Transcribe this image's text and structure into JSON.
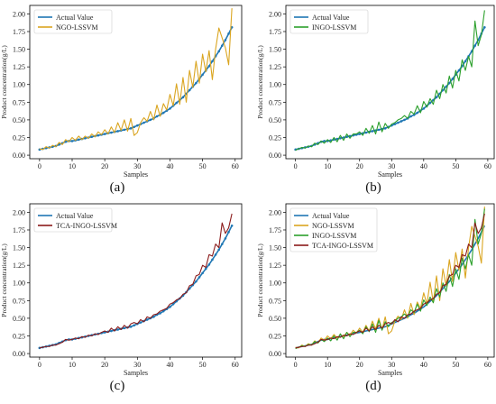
{
  "figure": {
    "panel_labels": [
      "(a)",
      "(b)",
      "(c)",
      "(d)"
    ]
  },
  "chart_data": [
    {
      "type": "line",
      "panel": "(a)",
      "xlabel": "Samples",
      "ylabel": "Product concentration(g/L)",
      "xlim": [
        -3,
        62
      ],
      "ylim": [
        -0.05,
        2.12
      ],
      "xticks": [
        0,
        10,
        20,
        30,
        40,
        50,
        60
      ],
      "yticks": [
        0.0,
        0.25,
        0.5,
        0.75,
        1.0,
        1.25,
        1.5,
        1.75,
        2.0
      ],
      "legend_position": "upper-left",
      "grid": false,
      "series": [
        {
          "name": "Actual Value",
          "color": "#1f77b4",
          "marker": "dot",
          "values": [
            0.08,
            0.09,
            0.1,
            0.11,
            0.12,
            0.13,
            0.15,
            0.17,
            0.19,
            0.2,
            0.2,
            0.21,
            0.22,
            0.23,
            0.24,
            0.25,
            0.26,
            0.27,
            0.28,
            0.29,
            0.3,
            0.31,
            0.32,
            0.33,
            0.34,
            0.35,
            0.36,
            0.37,
            0.38,
            0.4,
            0.42,
            0.44,
            0.46,
            0.48,
            0.5,
            0.52,
            0.55,
            0.57,
            0.6,
            0.63,
            0.66,
            0.7,
            0.74,
            0.78,
            0.82,
            0.87,
            0.92,
            0.97,
            1.02,
            1.08,
            1.14,
            1.2,
            1.26,
            1.33,
            1.4,
            1.47,
            1.55,
            1.63,
            1.72,
            1.81
          ]
        },
        {
          "name": "NGO-LSSVM",
          "color": "#daa520",
          "marker": "none",
          "values": [
            0.09,
            0.08,
            0.12,
            0.1,
            0.14,
            0.12,
            0.18,
            0.15,
            0.22,
            0.19,
            0.25,
            0.21,
            0.27,
            0.22,
            0.27,
            0.24,
            0.3,
            0.26,
            0.33,
            0.29,
            0.36,
            0.3,
            0.4,
            0.32,
            0.46,
            0.35,
            0.5,
            0.34,
            0.52,
            0.28,
            0.32,
            0.46,
            0.53,
            0.48,
            0.62,
            0.5,
            0.71,
            0.55,
            0.73,
            0.64,
            0.86,
            0.7,
            1.01,
            0.72,
            1.1,
            0.75,
            1.2,
            0.96,
            1.33,
            1.02,
            1.43,
            1.18,
            1.48,
            1.07,
            1.5,
            1.8,
            1.66,
            1.52,
            1.28,
            2.08
          ]
        }
      ]
    },
    {
      "type": "line",
      "panel": "(b)",
      "xlabel": "Samples",
      "ylabel": "Product concentration(g/L)",
      "xlim": [
        -3,
        62
      ],
      "ylim": [
        -0.05,
        2.12
      ],
      "xticks": [
        0,
        10,
        20,
        30,
        40,
        50,
        60
      ],
      "yticks": [
        0.0,
        0.25,
        0.5,
        0.75,
        1.0,
        1.25,
        1.5,
        1.75,
        2.0
      ],
      "legend_position": "upper-left",
      "grid": false,
      "series": [
        {
          "name": "Actual Value",
          "color": "#1f77b4",
          "marker": "dot",
          "values": [
            0.08,
            0.09,
            0.1,
            0.11,
            0.12,
            0.13,
            0.15,
            0.17,
            0.19,
            0.2,
            0.2,
            0.21,
            0.22,
            0.23,
            0.24,
            0.25,
            0.26,
            0.27,
            0.28,
            0.29,
            0.3,
            0.31,
            0.32,
            0.33,
            0.34,
            0.35,
            0.36,
            0.37,
            0.38,
            0.4,
            0.42,
            0.44,
            0.46,
            0.48,
            0.5,
            0.52,
            0.55,
            0.57,
            0.6,
            0.63,
            0.66,
            0.7,
            0.74,
            0.78,
            0.82,
            0.87,
            0.92,
            0.97,
            1.02,
            1.08,
            1.14,
            1.2,
            1.26,
            1.33,
            1.4,
            1.47,
            1.55,
            1.63,
            1.72,
            1.81
          ]
        },
        {
          "name": "INGO-LSSVM",
          "color": "#2ca02c",
          "marker": "none",
          "values": [
            0.07,
            0.09,
            0.11,
            0.1,
            0.13,
            0.12,
            0.17,
            0.15,
            0.2,
            0.17,
            0.22,
            0.18,
            0.25,
            0.19,
            0.28,
            0.21,
            0.3,
            0.24,
            0.3,
            0.3,
            0.33,
            0.28,
            0.38,
            0.31,
            0.42,
            0.3,
            0.47,
            0.33,
            0.45,
            0.38,
            0.44,
            0.46,
            0.5,
            0.52,
            0.56,
            0.52,
            0.62,
            0.58,
            0.7,
            0.6,
            0.76,
            0.68,
            0.8,
            0.72,
            0.92,
            0.8,
            1.0,
            0.88,
            1.12,
            0.95,
            1.2,
            1.05,
            1.35,
            1.2,
            1.4,
            1.25,
            1.9,
            1.55,
            1.7,
            2.05
          ]
        }
      ]
    },
    {
      "type": "line",
      "panel": "(c)",
      "xlabel": "Samples",
      "ylabel": "Product concentration(g/L)",
      "xlim": [
        -3,
        62
      ],
      "ylim": [
        -0.05,
        2.12
      ],
      "xticks": [
        0,
        10,
        20,
        30,
        40,
        50,
        60
      ],
      "yticks": [
        0.0,
        0.25,
        0.5,
        0.75,
        1.0,
        1.25,
        1.5,
        1.75,
        2.0
      ],
      "legend_position": "upper-left",
      "grid": false,
      "series": [
        {
          "name": "Actual Value",
          "color": "#1f77b4",
          "marker": "dot",
          "values": [
            0.08,
            0.09,
            0.1,
            0.11,
            0.12,
            0.13,
            0.15,
            0.17,
            0.19,
            0.2,
            0.2,
            0.21,
            0.22,
            0.23,
            0.24,
            0.25,
            0.26,
            0.27,
            0.28,
            0.29,
            0.3,
            0.31,
            0.32,
            0.33,
            0.34,
            0.35,
            0.36,
            0.37,
            0.38,
            0.4,
            0.42,
            0.44,
            0.46,
            0.48,
            0.5,
            0.52,
            0.55,
            0.57,
            0.6,
            0.63,
            0.66,
            0.7,
            0.74,
            0.78,
            0.82,
            0.87,
            0.92,
            0.97,
            1.02,
            1.08,
            1.14,
            1.2,
            1.26,
            1.33,
            1.4,
            1.47,
            1.55,
            1.63,
            1.72,
            1.81
          ]
        },
        {
          "name": "TCA-INGO-LSSVM",
          "color": "#8b1a1a",
          "marker": "none",
          "values": [
            0.08,
            0.09,
            0.1,
            0.1,
            0.12,
            0.12,
            0.14,
            0.16,
            0.2,
            0.19,
            0.2,
            0.22,
            0.21,
            0.24,
            0.23,
            0.26,
            0.25,
            0.28,
            0.27,
            0.3,
            0.32,
            0.3,
            0.36,
            0.32,
            0.38,
            0.34,
            0.4,
            0.36,
            0.42,
            0.44,
            0.42,
            0.48,
            0.45,
            0.52,
            0.5,
            0.55,
            0.56,
            0.6,
            0.62,
            0.64,
            0.7,
            0.72,
            0.76,
            0.78,
            0.84,
            0.86,
            0.96,
            0.98,
            1.1,
            1.12,
            1.25,
            1.22,
            1.4,
            1.38,
            1.55,
            1.5,
            1.85,
            1.7,
            1.78,
            1.98
          ]
        }
      ]
    },
    {
      "type": "line",
      "panel": "(d)",
      "xlabel": "Samples",
      "ylabel": "Product concentration(g/L)",
      "xlim": [
        -3,
        62
      ],
      "ylim": [
        -0.05,
        2.12
      ],
      "xticks": [
        0,
        10,
        20,
        30,
        40,
        50,
        60
      ],
      "yticks": [
        0.0,
        0.25,
        0.5,
        0.75,
        1.0,
        1.25,
        1.5,
        1.75,
        2.0
      ],
      "legend_position": "upper-left",
      "grid": false,
      "series": [
        {
          "name": "Actual Value",
          "color": "#1f77b4",
          "marker": "none",
          "values": [
            0.08,
            0.09,
            0.1,
            0.11,
            0.12,
            0.13,
            0.15,
            0.17,
            0.19,
            0.2,
            0.2,
            0.21,
            0.22,
            0.23,
            0.24,
            0.25,
            0.26,
            0.27,
            0.28,
            0.29,
            0.3,
            0.31,
            0.32,
            0.33,
            0.34,
            0.35,
            0.36,
            0.37,
            0.38,
            0.4,
            0.42,
            0.44,
            0.46,
            0.48,
            0.5,
            0.52,
            0.55,
            0.57,
            0.6,
            0.63,
            0.66,
            0.7,
            0.74,
            0.78,
            0.82,
            0.87,
            0.92,
            0.97,
            1.02,
            1.08,
            1.14,
            1.2,
            1.26,
            1.33,
            1.4,
            1.47,
            1.55,
            1.63,
            1.72,
            1.81
          ]
        },
        {
          "name": "NGO-LSSVM",
          "color": "#daa520",
          "marker": "none",
          "values": [
            0.09,
            0.08,
            0.12,
            0.1,
            0.14,
            0.12,
            0.18,
            0.15,
            0.22,
            0.19,
            0.25,
            0.21,
            0.27,
            0.22,
            0.27,
            0.24,
            0.3,
            0.26,
            0.33,
            0.29,
            0.36,
            0.3,
            0.4,
            0.32,
            0.46,
            0.35,
            0.5,
            0.34,
            0.52,
            0.28,
            0.32,
            0.46,
            0.53,
            0.48,
            0.62,
            0.5,
            0.71,
            0.55,
            0.73,
            0.64,
            0.86,
            0.7,
            1.01,
            0.72,
            1.1,
            0.75,
            1.2,
            0.96,
            1.33,
            1.02,
            1.43,
            1.18,
            1.48,
            1.07,
            1.5,
            1.8,
            1.66,
            1.52,
            1.28,
            2.08
          ]
        },
        {
          "name": "INGO-LSSVM",
          "color": "#2ca02c",
          "marker": "none",
          "values": [
            0.07,
            0.09,
            0.11,
            0.1,
            0.13,
            0.12,
            0.17,
            0.15,
            0.2,
            0.17,
            0.22,
            0.18,
            0.25,
            0.19,
            0.28,
            0.21,
            0.3,
            0.24,
            0.3,
            0.3,
            0.33,
            0.28,
            0.38,
            0.31,
            0.42,
            0.3,
            0.47,
            0.33,
            0.45,
            0.38,
            0.44,
            0.46,
            0.5,
            0.52,
            0.56,
            0.52,
            0.62,
            0.58,
            0.7,
            0.6,
            0.76,
            0.68,
            0.8,
            0.72,
            0.92,
            0.8,
            1.0,
            0.88,
            1.12,
            0.95,
            1.2,
            1.05,
            1.35,
            1.2,
            1.4,
            1.25,
            1.9,
            1.55,
            1.7,
            2.05
          ]
        },
        {
          "name": "TCA-INGO-LSSVM",
          "color": "#8b1a1a",
          "marker": "none",
          "values": [
            0.08,
            0.09,
            0.1,
            0.1,
            0.12,
            0.12,
            0.14,
            0.16,
            0.2,
            0.19,
            0.2,
            0.22,
            0.21,
            0.24,
            0.23,
            0.26,
            0.25,
            0.28,
            0.27,
            0.3,
            0.32,
            0.3,
            0.36,
            0.32,
            0.38,
            0.34,
            0.4,
            0.36,
            0.42,
            0.44,
            0.42,
            0.48,
            0.45,
            0.52,
            0.5,
            0.55,
            0.56,
            0.6,
            0.62,
            0.64,
            0.7,
            0.72,
            0.76,
            0.78,
            0.84,
            0.86,
            0.96,
            0.98,
            1.1,
            1.12,
            1.25,
            1.22,
            1.4,
            1.38,
            1.55,
            1.5,
            1.85,
            1.7,
            1.78,
            1.98
          ]
        }
      ]
    }
  ]
}
